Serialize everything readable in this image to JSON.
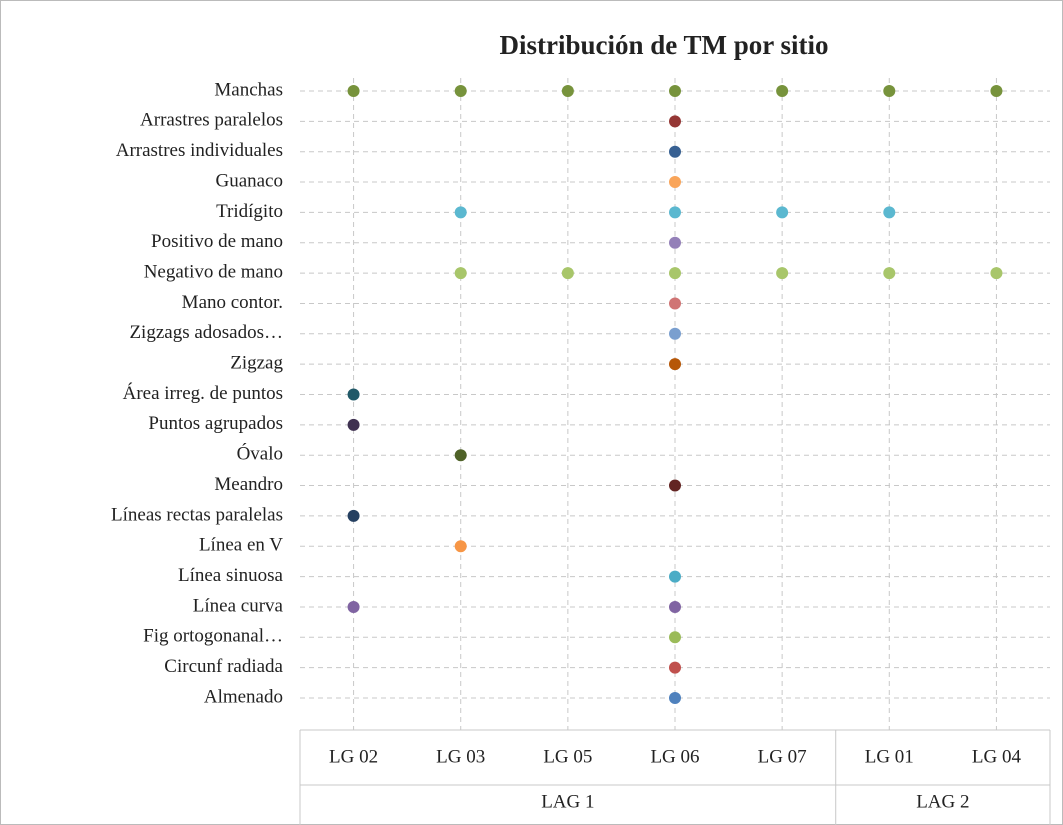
{
  "chart_data": {
    "type": "dot-matrix",
    "title": "Distribución de TM por sitio",
    "categories": [
      "LG 02",
      "LG 03",
      "LG 05",
      "LG 06",
      "LG 07",
      "LG 01",
      "LG 04"
    ],
    "groups": [
      {
        "name": "LAG 1",
        "members": [
          "LG 02",
          "LG 03",
          "LG 05",
          "LG 06",
          "LG 07"
        ]
      },
      {
        "name": "LAG 2",
        "members": [
          "LG 01",
          "LG 04"
        ]
      }
    ],
    "grid": true,
    "series": [
      {
        "name": "Manchas",
        "color": "#77933c",
        "sites": [
          "LG 02",
          "LG 03",
          "LG 05",
          "LG 06",
          "LG 07",
          "LG 01",
          "LG 04"
        ]
      },
      {
        "name": "Arrastres paralelos",
        "color": "#953735",
        "sites": [
          "LG 06"
        ]
      },
      {
        "name": "Arrastres individuales",
        "color": "#376092",
        "sites": [
          "LG 06"
        ]
      },
      {
        "name": "Guanaco",
        "color": "#f9a55a",
        "sites": [
          "LG 06"
        ]
      },
      {
        "name": "Tridígito",
        "color": "#5bb8d0",
        "sites": [
          "LG 03",
          "LG 06",
          "LG 07",
          "LG 01"
        ]
      },
      {
        "name": "Positivo de mano",
        "color": "#9480b8",
        "sites": [
          "LG 06"
        ]
      },
      {
        "name": "Negativo de mano",
        "color": "#a8c66a",
        "sites": [
          "LG 03",
          "LG 05",
          "LG 06",
          "LG 07",
          "LG 01",
          "LG 04"
        ]
      },
      {
        "name": "Mano contor.",
        "color": "#d07474",
        "sites": [
          "LG 06"
        ]
      },
      {
        "name": "Zigzags adosados…",
        "color": "#7a9fcf",
        "sites": [
          "LG 06"
        ]
      },
      {
        "name": "Zigzag",
        "color": "#b65708",
        "sites": [
          "LG 06"
        ]
      },
      {
        "name": "Área irreg. de puntos",
        "color": "#215968",
        "sites": [
          "LG 02"
        ]
      },
      {
        "name": "Puntos agrupados",
        "color": "#3f3151",
        "sites": [
          "LG 02"
        ]
      },
      {
        "name": "Óvalo",
        "color": "#4f6228",
        "sites": [
          "LG 03"
        ]
      },
      {
        "name": "Meandro",
        "color": "#632523",
        "sites": [
          "LG 06"
        ]
      },
      {
        "name": "Líneas rectas paralelas",
        "color": "#254061",
        "sites": [
          "LG 02"
        ]
      },
      {
        "name": "Línea en V",
        "color": "#f79646",
        "sites": [
          "LG 03"
        ]
      },
      {
        "name": "Línea sinuosa",
        "color": "#4bacc6",
        "sites": [
          "LG 06"
        ]
      },
      {
        "name": "Línea curva",
        "color": "#8064a2",
        "sites": [
          "LG 02",
          "LG 06"
        ]
      },
      {
        "name": "Fig ortogonanal…",
        "color": "#9bbb59",
        "sites": [
          "LG 06"
        ]
      },
      {
        "name": "Circunf radiada",
        "color": "#c0504d",
        "sites": [
          "LG 06"
        ]
      },
      {
        "name": "Almenado",
        "color": "#4f81bd",
        "sites": [
          "LG 06"
        ]
      }
    ]
  }
}
